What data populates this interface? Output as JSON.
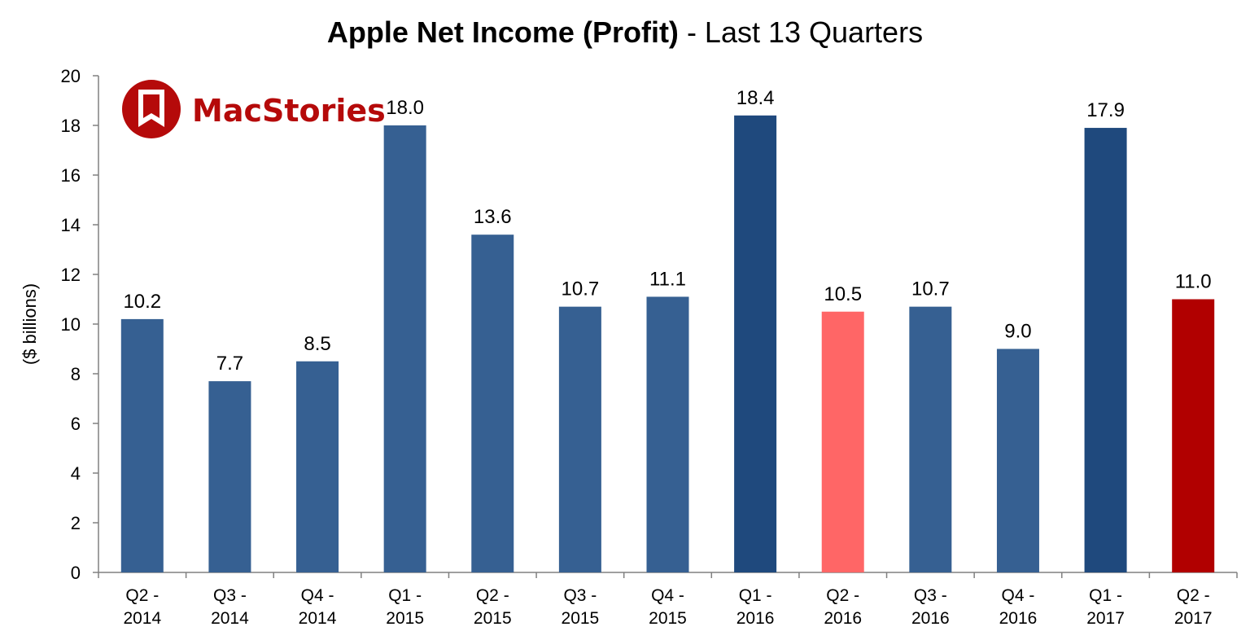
{
  "chart_data": {
    "type": "bar",
    "title_bold": "Apple Net Income (Profit)",
    "title_rest": " - Last 13 Quarters",
    "xlabel": "",
    "ylabel": "($ billions)",
    "ylim": [
      0,
      20
    ],
    "yticks": [
      0,
      2,
      4,
      6,
      8,
      10,
      12,
      14,
      16,
      18,
      20
    ],
    "grid": false,
    "categories": [
      [
        "Q2 -",
        "2014"
      ],
      [
        "Q3 -",
        "2014"
      ],
      [
        "Q4 -",
        "2014"
      ],
      [
        "Q1 -",
        "2015"
      ],
      [
        "Q2 -",
        "2015"
      ],
      [
        "Q3 -",
        "2015"
      ],
      [
        "Q4 -",
        "2015"
      ],
      [
        "Q1 -",
        "2016"
      ],
      [
        "Q2 -",
        "2016"
      ],
      [
        "Q3 -",
        "2016"
      ],
      [
        "Q4 -",
        "2016"
      ],
      [
        "Q1 -",
        "2017"
      ],
      [
        "Q2 -",
        "2017"
      ]
    ],
    "values": [
      10.2,
      7.7,
      8.5,
      18.0,
      13.6,
      10.7,
      11.1,
      18.4,
      10.5,
      10.7,
      9.0,
      17.9,
      11.0
    ],
    "value_labels": [
      "10.2",
      "7.7",
      "8.5",
      "18.0",
      "13.6",
      "10.7",
      "11.1",
      "18.4",
      "10.5",
      "10.7",
      "9.0",
      "17.9",
      "11.0"
    ],
    "colors": [
      "#366092",
      "#366092",
      "#366092",
      "#366092",
      "#366092",
      "#366092",
      "#366092",
      "#1f497d",
      "#ff6666",
      "#366092",
      "#366092",
      "#1f497d",
      "#b10000"
    ]
  },
  "logo": {
    "text": "MacStories",
    "color": "#b50a0a"
  }
}
